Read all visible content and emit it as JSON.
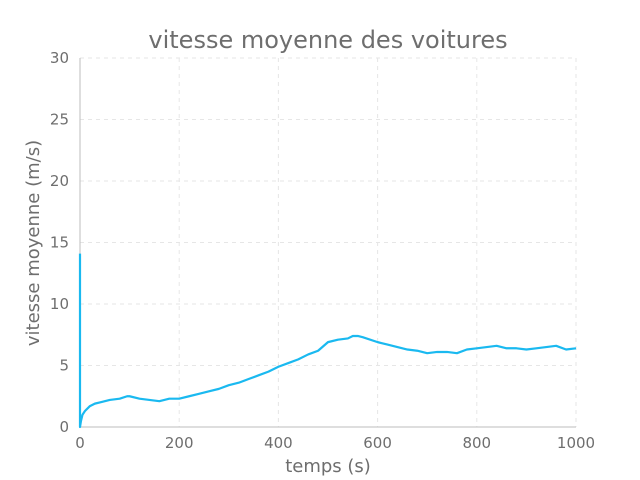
{
  "chart_data": {
    "type": "line",
    "title": "vitesse moyenne des voitures",
    "xlabel": "temps (s)",
    "ylabel": "vitesse moyenne (m/s)",
    "xlim": [
      0,
      1000
    ],
    "ylim": [
      0,
      30
    ],
    "xticks": [
      "0",
      "200",
      "400",
      "600",
      "800",
      "1000"
    ],
    "yticks": [
      "0",
      "5",
      "10",
      "15",
      "20",
      "25",
      "30"
    ],
    "grid": true,
    "line_color": "#1ab9f0",
    "series": [
      {
        "x": [
          0,
          0,
          2,
          5,
          10,
          20,
          30,
          40,
          60,
          80,
          95,
          100,
          120,
          140,
          160,
          180,
          190,
          200,
          220,
          240,
          260,
          280,
          300,
          320,
          340,
          360,
          380,
          400,
          420,
          440,
          460,
          480,
          500,
          520,
          540,
          550,
          560,
          570,
          600,
          620,
          640,
          660,
          680,
          700,
          720,
          740,
          760,
          780,
          800,
          820,
          840,
          860,
          880,
          900,
          920,
          940,
          960,
          980,
          1000
        ],
        "y": [
          14.1,
          0,
          0.5,
          1.0,
          1.3,
          1.7,
          1.9,
          2.0,
          2.2,
          2.3,
          2.5,
          2.5,
          2.3,
          2.2,
          2.1,
          2.3,
          2.3,
          2.3,
          2.5,
          2.7,
          2.9,
          3.1,
          3.4,
          3.6,
          3.9,
          4.2,
          4.5,
          4.9,
          5.2,
          5.5,
          5.9,
          6.2,
          6.9,
          7.1,
          7.2,
          7.4,
          7.4,
          7.3,
          6.9,
          6.7,
          6.5,
          6.3,
          6.2,
          6.0,
          6.1,
          6.1,
          6.0,
          6.3,
          6.4,
          6.5,
          6.6,
          6.4,
          6.4,
          6.3,
          6.4,
          6.5,
          6.6,
          6.3,
          6.4
        ]
      }
    ]
  }
}
